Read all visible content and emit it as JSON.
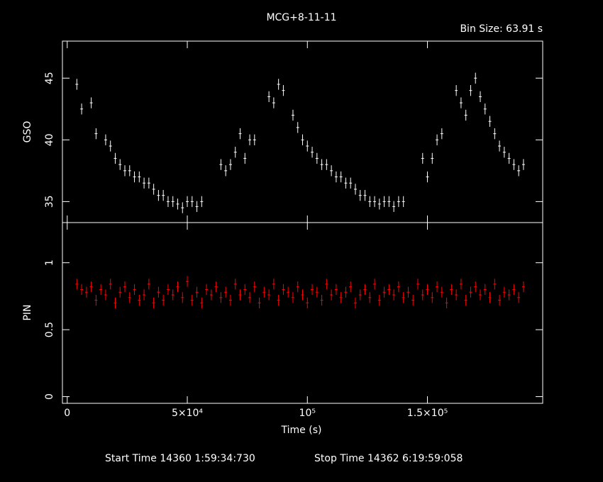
{
  "title": "MCG+8-11-11",
  "bin_size": "Bin Size: 63.91 s",
  "footer": {
    "start": "Start Time 14360  1:59:34:730",
    "stop": "Stop Time 14362  6:19:59:058"
  },
  "colors": {
    "gso": "#ffffff",
    "pin": "#ff0000",
    "axes": "#ffffff",
    "background": "#000000"
  },
  "chart_data": [
    {
      "type": "line",
      "name_panel": "top",
      "ylabel": "GSO",
      "ylim": [
        33.3,
        48
      ],
      "yticks": [
        35,
        40,
        45
      ],
      "ytick_labels": [
        "35",
        "40",
        "45"
      ],
      "xlim": [
        -2000,
        198000
      ],
      "series": [
        {
          "x": [
            4000,
            6000,
            8000,
            10000,
            12000,
            14000,
            16000,
            18000,
            20000,
            22000,
            24000,
            26000,
            28000,
            30000,
            32000,
            34000,
            36000,
            38000,
            40000,
            42000,
            44000,
            46000,
            48000,
            50000,
            52000,
            54000,
            56000,
            58000,
            60000,
            62000,
            64000,
            66000,
            68000,
            70000,
            72000,
            74000,
            76000,
            78000,
            80000,
            82000,
            84000,
            86000,
            88000,
            90000,
            92000,
            94000,
            96000,
            98000,
            100000,
            102000,
            104000,
            106000,
            108000,
            110000,
            112000,
            114000,
            116000,
            118000,
            120000,
            122000,
            124000,
            126000,
            128000,
            130000,
            132000,
            134000,
            136000,
            138000,
            140000,
            142000,
            144000,
            146000,
            148000,
            150000,
            152000,
            154000,
            156000,
            158000,
            160000,
            162000,
            164000,
            166000,
            168000,
            170000,
            172000,
            174000,
            176000,
            178000,
            180000,
            182000,
            184000,
            186000,
            188000,
            190000
          ],
          "y": [
            44.5,
            42.5,
            null,
            43,
            40.5,
            null,
            40,
            39.5,
            38.5,
            38,
            37.5,
            37.5,
            37,
            37,
            36.5,
            36.5,
            36,
            35.5,
            35.5,
            35,
            35,
            34.8,
            34.5,
            35,
            35,
            34.6,
            35,
            null,
            null,
            null,
            38,
            37.5,
            38,
            39,
            40.5,
            38.5,
            40,
            40,
            null,
            null,
            43.5,
            43,
            44.5,
            44,
            null,
            42,
            41,
            40,
            39.5,
            39,
            38.5,
            38,
            38,
            37.5,
            37,
            37,
            36.5,
            36.5,
            36,
            35.5,
            35.5,
            35,
            35,
            34.8,
            35,
            35,
            34.6,
            35,
            35,
            null,
            null,
            null,
            38.5,
            37,
            38.5,
            40,
            40.5,
            null,
            null,
            44,
            43,
            42,
            44,
            45,
            43.5,
            42.5,
            41.5,
            40.5,
            39.5,
            39,
            38.5,
            38,
            37.5,
            38
          ]
        }
      ]
    },
    {
      "type": "line",
      "name_panel": "bottom",
      "ylabel": "PIN",
      "xlabel": "Time (s)",
      "ylim": [
        -0.05,
        1.3
      ],
      "yticks": [
        0,
        0.5,
        1
      ],
      "ytick_labels": [
        "0",
        "0.5",
        "1"
      ],
      "xlim": [
        -2000,
        198000
      ],
      "xticks": [
        0,
        50000,
        100000,
        150000
      ],
      "xtick_labels": [
        "0",
        "5×10⁴",
        "10⁵",
        "1.5×10⁵"
      ],
      "series": [
        {
          "x": [
            4000,
            6000,
            8000,
            10000,
            12000,
            14000,
            16000,
            18000,
            20000,
            22000,
            24000,
            26000,
            28000,
            30000,
            32000,
            34000,
            36000,
            38000,
            40000,
            42000,
            44000,
            46000,
            48000,
            50000,
            52000,
            54000,
            56000,
            58000,
            60000,
            62000,
            64000,
            66000,
            68000,
            70000,
            72000,
            74000,
            76000,
            78000,
            80000,
            82000,
            84000,
            86000,
            88000,
            90000,
            92000,
            94000,
            96000,
            98000,
            100000,
            102000,
            104000,
            106000,
            108000,
            110000,
            112000,
            114000,
            116000,
            118000,
            120000,
            122000,
            124000,
            126000,
            128000,
            130000,
            132000,
            134000,
            136000,
            138000,
            140000,
            142000,
            144000,
            146000,
            148000,
            150000,
            152000,
            154000,
            156000,
            158000,
            160000,
            162000,
            164000,
            166000,
            168000,
            170000,
            172000,
            174000,
            176000,
            178000,
            180000,
            182000,
            184000,
            186000,
            188000,
            190000
          ],
          "y": [
            0.84,
            0.8,
            0.78,
            0.82,
            0.72,
            0.8,
            0.76,
            0.84,
            0.7,
            0.78,
            0.82,
            0.74,
            0.8,
            0.72,
            0.76,
            0.84,
            0.7,
            0.78,
            0.72,
            0.8,
            0.76,
            0.82,
            0.74,
            0.86,
            0.72,
            0.78,
            0.7,
            0.8,
            0.76,
            0.82,
            0.74,
            0.78,
            0.72,
            0.84,
            0.76,
            0.8,
            0.74,
            0.82,
            0.7,
            0.78,
            0.76,
            0.84,
            0.72,
            0.8,
            0.78,
            0.74,
            0.82,
            0.76,
            0.7,
            0.8,
            0.78,
            0.72,
            0.84,
            0.76,
            0.8,
            0.74,
            0.78,
            0.82,
            0.7,
            0.76,
            0.8,
            0.74,
            0.84,
            0.72,
            0.78,
            0.8,
            0.76,
            0.82,
            0.74,
            0.78,
            0.72,
            0.84,
            0.76,
            0.8,
            0.74,
            0.82,
            0.78,
            0.7,
            0.8,
            0.76,
            0.84,
            0.72,
            0.78,
            0.82,
            0.76,
            0.8,
            0.74,
            0.84,
            0.72,
            0.78,
            0.76,
            0.8,
            0.74,
            0.82
          ]
        }
      ]
    }
  ]
}
